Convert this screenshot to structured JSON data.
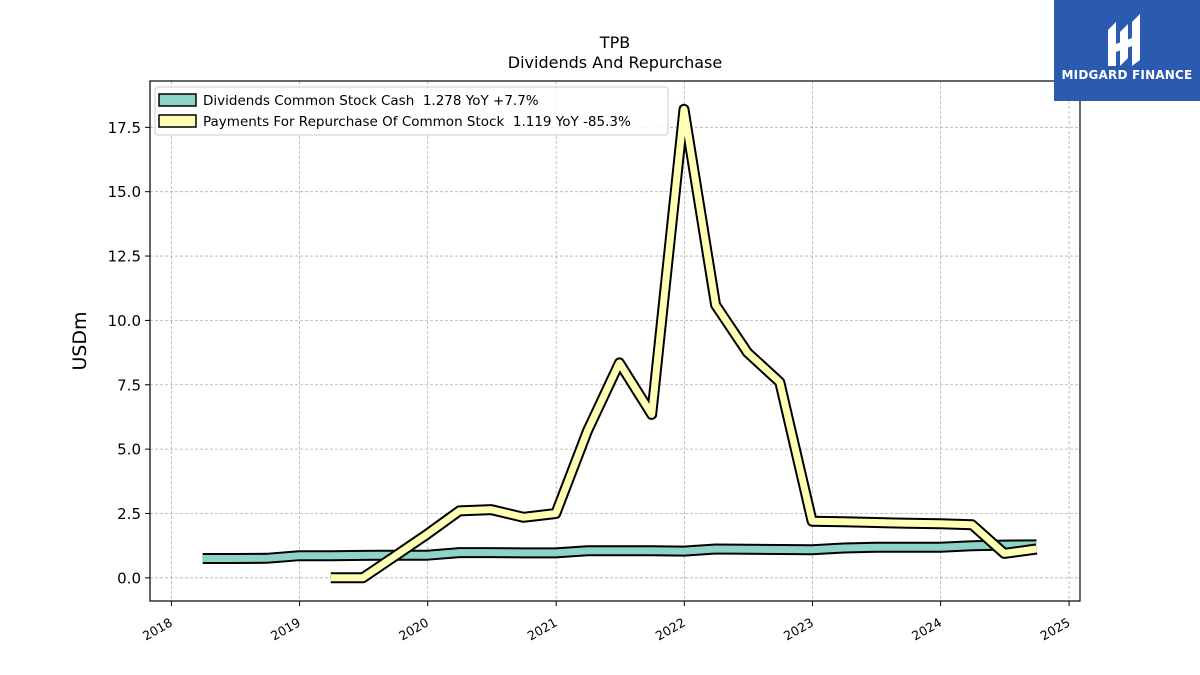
{
  "chart_data": {
    "type": "line",
    "title": "TPB",
    "subtitle": "Dividends And Repurchase",
    "xlabel": "",
    "ylabel": "USDm",
    "xlim": [
      "2017-11-01",
      "2025-02-01"
    ],
    "ylim": [
      -0.9,
      19.3
    ],
    "x_ticks": [
      "2018",
      "2019",
      "2020",
      "2021",
      "2022",
      "2023",
      "2024",
      "2025"
    ],
    "y_ticks": [
      "0.0",
      "2.5",
      "5.0",
      "7.5",
      "10.0",
      "12.5",
      "15.0",
      "17.5"
    ],
    "y_tick_values": [
      0,
      2.5,
      5,
      7.5,
      10,
      12.5,
      15,
      17.5
    ],
    "grid": true,
    "legend_position": "top-left",
    "series": [
      {
        "name": "Dividends Common Stock Cash  1.278 YoY +7.7%",
        "color": "#8dd3c7",
        "x": [
          "2018-03-31",
          "2018-06-30",
          "2018-09-30",
          "2018-12-31",
          "2019-03-31",
          "2019-06-30",
          "2019-09-30",
          "2019-12-31",
          "2020-03-31",
          "2020-06-30",
          "2020-09-30",
          "2020-12-31",
          "2021-03-31",
          "2021-06-30",
          "2021-09-30",
          "2021-12-31",
          "2022-03-31",
          "2022-06-30",
          "2022-09-30",
          "2022-12-31",
          "2023-03-31",
          "2023-06-30",
          "2023-09-30",
          "2023-12-31",
          "2024-03-31",
          "2024-06-30",
          "2024-09-30"
        ],
        "y": [
          0.75,
          0.75,
          0.76,
          0.86,
          0.86,
          0.87,
          0.88,
          0.88,
          0.98,
          0.98,
          0.97,
          0.97,
          1.05,
          1.05,
          1.05,
          1.04,
          1.12,
          1.11,
          1.1,
          1.09,
          1.16,
          1.19,
          1.19,
          1.19,
          1.25,
          1.27,
          1.28
        ]
      },
      {
        "name": "Payments For Repurchase Of Common Stock  1.119 YoY -85.3%",
        "color": "#ffffb3",
        "x": [
          "2019-03-31",
          "2019-06-30",
          "2019-09-30",
          "2019-12-31",
          "2020-03-31",
          "2020-06-30",
          "2020-09-30",
          "2020-12-31",
          "2021-03-31",
          "2021-06-30",
          "2021-09-30",
          "2021-12-31",
          "2022-03-31",
          "2022-06-30",
          "2022-09-30",
          "2022-12-31",
          "2023-03-31",
          "2023-06-30",
          "2023-09-30",
          "2023-12-31",
          "2024-03-31",
          "2024-06-30",
          "2024-09-30"
        ],
        "y": [
          0.0,
          0.0,
          0.85,
          1.7,
          2.6,
          2.65,
          2.35,
          2.5,
          5.7,
          8.35,
          6.35,
          18.2,
          10.6,
          8.75,
          7.6,
          2.2,
          2.18,
          2.15,
          2.12,
          2.1,
          2.06,
          0.95,
          1.12
        ]
      }
    ]
  },
  "logo": {
    "text": "MIDGARD FINANCE"
  }
}
